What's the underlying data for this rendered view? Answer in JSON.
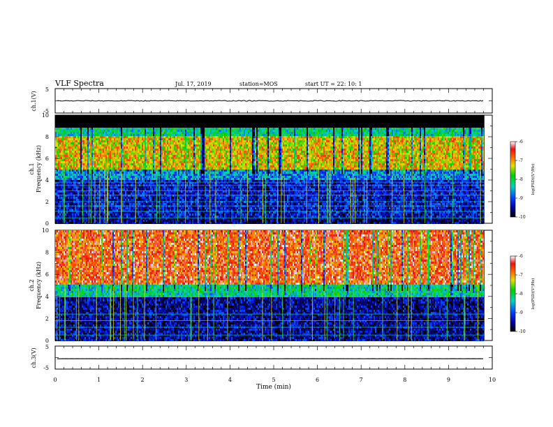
{
  "header": {
    "title": "VLF Spectra",
    "date": "Jul. 17, 2019",
    "station": "station=MOS",
    "start": "start UT = 22: 10: 1"
  },
  "chart_data": [
    {
      "type": "line",
      "id": "ch1_waveform",
      "ylabel": "ch.1(V)",
      "yticks": [
        "5",
        "-5"
      ],
      "ylim": [
        -5,
        5
      ],
      "xlim": [
        0,
        10
      ],
      "value_approx": 0
    },
    {
      "type": "heatmap",
      "id": "ch1_spectrogram",
      "ylabel": "ch.1 Frequency (kHz)",
      "yticks": [
        "0",
        "2",
        "4",
        "6",
        "8",
        "10"
      ],
      "ylim": [
        0,
        10
      ],
      "xlim": [
        0,
        9.82
      ],
      "colorbar": {
        "label": "log(PSD)(V²/Hz)",
        "ticks": [
          "-6",
          "-7",
          "-8",
          "-9",
          "-10"
        ],
        "range": [
          -10,
          -6
        ]
      },
      "bands_khz": [
        {
          "from": 0,
          "to": 0.5,
          "level": -9.6
        },
        {
          "from": 0.5,
          "to": 4,
          "level": -9.3
        },
        {
          "from": 4,
          "to": 5,
          "level": -8.7
        },
        {
          "from": 5,
          "to": 8,
          "level": -7.2
        },
        {
          "from": 8,
          "to": 8.9,
          "level": -8.2
        },
        {
          "from": 8.9,
          "to": 10,
          "level": -10
        }
      ],
      "tones_khz": [
        0.5,
        1.1,
        1.6,
        2.0,
        2.6,
        3.0,
        3.5,
        3.8
      ]
    },
    {
      "type": "heatmap",
      "id": "ch2_spectrogram",
      "ylabel": "ch.2 Frequency (kHz)",
      "yticks": [
        "0",
        "2",
        "4",
        "6",
        "8",
        "10"
      ],
      "ylim": [
        0,
        10
      ],
      "xlim": [
        0,
        9.82
      ],
      "colorbar": {
        "label": "log(PSD)(V²/Hz)",
        "ticks": [
          "-6",
          "-7",
          "-8",
          "-9",
          "-10"
        ],
        "range": [
          -10,
          -6
        ]
      },
      "bands_khz": [
        {
          "from": 0,
          "to": 4,
          "level": -9.5
        },
        {
          "from": 4,
          "to": 5,
          "level": -8.2
        },
        {
          "from": 5,
          "to": 10,
          "level": -6.6
        }
      ],
      "tones_khz": [
        0.5,
        1.2,
        1.8,
        2.4
      ]
    },
    {
      "type": "line",
      "id": "ch3_waveform",
      "ylabel": "ch.3(V)",
      "xlabel": "Time (min)",
      "xticks": [
        "0",
        "1",
        "2",
        "3",
        "4",
        "5",
        "6",
        "7",
        "8",
        "9",
        "10"
      ],
      "yticks": [
        "5",
        "-5"
      ],
      "ylim": [
        -5,
        5
      ],
      "xlim": [
        0,
        10
      ],
      "value_approx": -0.5
    }
  ]
}
